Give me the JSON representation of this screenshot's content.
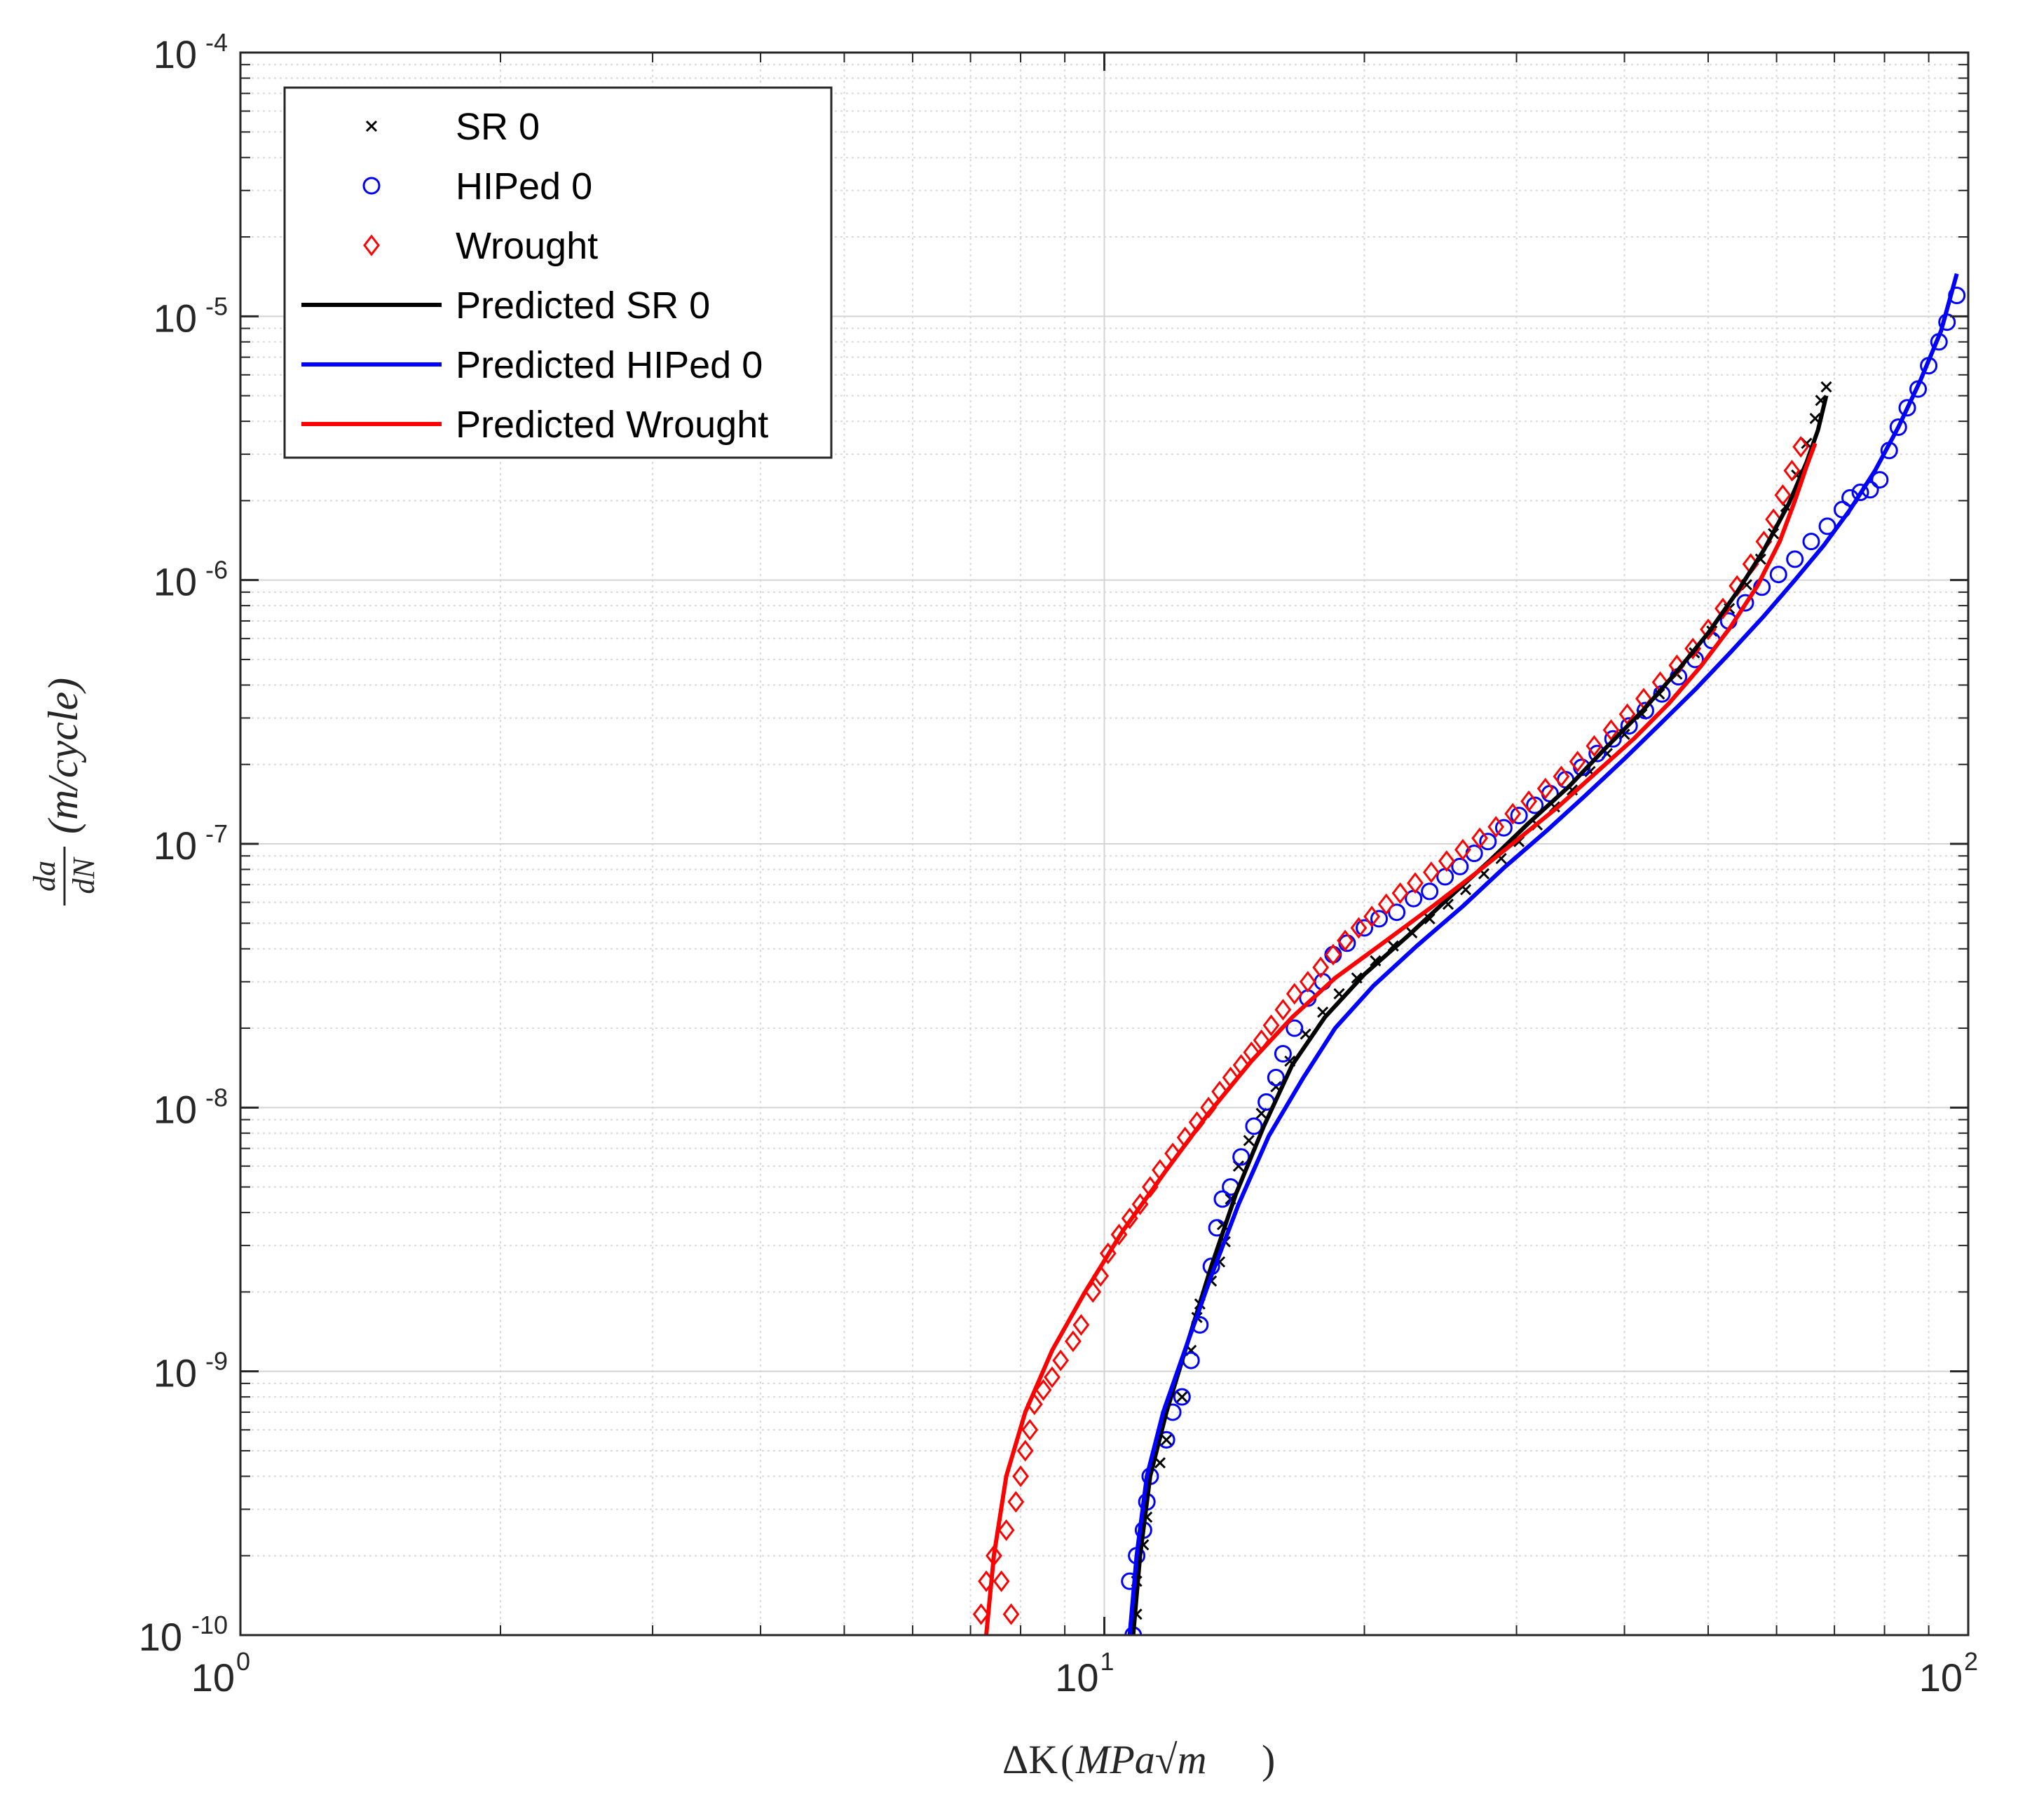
{
  "chart_data": {
    "type": "scatter",
    "xscale": "log",
    "yscale": "log",
    "xlim": [
      1,
      100
    ],
    "ylim": [
      1e-10,
      0.0001
    ],
    "grid": true,
    "minor_grid": true,
    "legend_position": "top-left",
    "x_ticks": [
      {
        "base": "10",
        "exp": "0",
        "value": 1
      },
      {
        "base": "10",
        "exp": "1",
        "value": 10
      },
      {
        "base": "10",
        "exp": "2",
        "value": 100
      }
    ],
    "y_ticks": [
      {
        "base": "10",
        "exp": "-10",
        "value": 1e-10
      },
      {
        "base": "10",
        "exp": "-9",
        "value": 1e-09
      },
      {
        "base": "10",
        "exp": "-8",
        "value": 1e-08
      },
      {
        "base": "10",
        "exp": "-7",
        "value": 1e-07
      },
      {
        "base": "10",
        "exp": "-6",
        "value": 1e-06
      },
      {
        "base": "10",
        "exp": "-5",
        "value": 1e-05
      },
      {
        "base": "10",
        "exp": "-4",
        "value": 0.0001
      }
    ],
    "xlabel": {
      "delta": "ΔK",
      "units": "MPa√m"
    },
    "ylabel": {
      "fraction_top": "da",
      "fraction_bottom": "dN",
      "units": "(m/cycle)"
    },
    "series": [
      {
        "name": "SR 0",
        "kind": "marker",
        "marker": "x",
        "color": "#000000",
        "points": [
          [
            10.9,
            1.2e-10
          ],
          [
            10.9,
            1.6e-10
          ],
          [
            11.1,
            2.2e-10
          ],
          [
            11.2,
            2.8e-10
          ],
          [
            11.6,
            4.5e-10
          ],
          [
            11.8,
            5.5e-10
          ],
          [
            12.3,
            8e-10
          ],
          [
            12.6,
            1.2e-09
          ],
          [
            12.8,
            1.6e-09
          ],
          [
            12.9,
            1.8e-09
          ],
          [
            13.3,
            2.2e-09
          ],
          [
            13.6,
            2.6e-09
          ],
          [
            13.8,
            3.1e-09
          ],
          [
            13.7,
            3.6e-09
          ],
          [
            14,
            4.5e-09
          ],
          [
            14.3,
            6e-09
          ],
          [
            14.7,
            7.5e-09
          ],
          [
            15.2,
            9.5e-09
          ],
          [
            15.8,
            1.2e-08
          ],
          [
            16.4,
            1.5e-08
          ],
          [
            17.1,
            1.9e-08
          ],
          [
            17.9,
            2.3e-08
          ],
          [
            18.7,
            2.7e-08
          ],
          [
            19.6,
            3.1e-08
          ],
          [
            20.6,
            3.6e-08
          ],
          [
            21.6,
            4.1e-08
          ],
          [
            22.7,
            4.6e-08
          ],
          [
            23.8,
            5.2e-08
          ],
          [
            25,
            5.9e-08
          ],
          [
            26.2,
            6.7e-08
          ],
          [
            27.5,
            7.7e-08
          ],
          [
            28.8,
            8.8e-08
          ],
          [
            30.2,
            1.02e-07
          ],
          [
            31.7,
            1.18e-07
          ],
          [
            33.2,
            1.38e-07
          ],
          [
            34.8,
            1.6e-07
          ],
          [
            36.5,
            1.88e-07
          ],
          [
            38.2,
            2.2e-07
          ],
          [
            40,
            2.6e-07
          ],
          [
            41.9,
            3.1e-07
          ],
          [
            43.9,
            3.7e-07
          ],
          [
            46,
            4.4e-07
          ],
          [
            48.2,
            5.3e-07
          ],
          [
            50.5,
            6.4e-07
          ],
          [
            52.9,
            7.8e-07
          ],
          [
            55.4,
            9.6e-07
          ],
          [
            57.5,
            1.2e-06
          ],
          [
            59.5,
            1.5e-06
          ],
          [
            61.5,
            1.9e-06
          ],
          [
            63.3,
            2.5e-06
          ],
          [
            65,
            3.3e-06
          ],
          [
            66.5,
            4.1e-06
          ],
          [
            67.5,
            4.8e-06
          ],
          [
            68.5,
            5.4e-06
          ]
        ]
      },
      {
        "name": "HIPed 0",
        "kind": "marker",
        "marker": "o",
        "color": "#0000ff",
        "points": [
          [
            10.8,
            1e-10
          ],
          [
            10.7,
            1.6e-10
          ],
          [
            10.9,
            2e-10
          ],
          [
            11.1,
            2.5e-10
          ],
          [
            11.2,
            3.2e-10
          ],
          [
            11.3,
            4e-10
          ],
          [
            11.8,
            5.5e-10
          ],
          [
            12,
            7e-10
          ],
          [
            12.3,
            8e-10
          ],
          [
            12.6,
            1.1e-09
          ],
          [
            12.9,
            1.5e-09
          ],
          [
            13.3,
            2.5e-09
          ],
          [
            13.5,
            3.5e-09
          ],
          [
            13.7,
            4.5e-09
          ],
          [
            14,
            5e-09
          ],
          [
            14.4,
            6.5e-09
          ],
          [
            14.9,
            8.5e-09
          ],
          [
            15.4,
            1.05e-08
          ],
          [
            15.8,
            1.3e-08
          ],
          [
            16.1,
            1.6e-08
          ],
          [
            16.6,
            2e-08
          ],
          [
            17.2,
            2.6e-08
          ],
          [
            17.9,
            3e-08
          ],
          [
            18.4,
            3.8e-08
          ],
          [
            19.1,
            4.2e-08
          ],
          [
            20,
            4.8e-08
          ],
          [
            20.8,
            5.2e-08
          ],
          [
            21.8,
            5.5e-08
          ],
          [
            22.8,
            6.2e-08
          ],
          [
            23.8,
            6.6e-08
          ],
          [
            24.8,
            7.5e-08
          ],
          [
            25.8,
            8.2e-08
          ],
          [
            26.8,
            9.2e-08
          ],
          [
            27.8,
            1.02e-07
          ],
          [
            29,
            1.15e-07
          ],
          [
            30.2,
            1.28e-07
          ],
          [
            31.5,
            1.4e-07
          ],
          [
            32.8,
            1.55e-07
          ],
          [
            34.2,
            1.75e-07
          ],
          [
            35.7,
            1.95e-07
          ],
          [
            37.2,
            2.2e-07
          ],
          [
            38.8,
            2.5e-07
          ],
          [
            40.5,
            2.8e-07
          ],
          [
            42.3,
            3.2e-07
          ],
          [
            44.2,
            3.7e-07
          ],
          [
            46.2,
            4.3e-07
          ],
          [
            48.3,
            5e-07
          ],
          [
            50.5,
            5.9e-07
          ],
          [
            52.8,
            7e-07
          ],
          [
            55.2,
            8.2e-07
          ],
          [
            57.7,
            9.4e-07
          ],
          [
            60.3,
            1.05e-06
          ],
          [
            63,
            1.2e-06
          ],
          [
            65.8,
            1.4e-06
          ],
          [
            68.7,
            1.6e-06
          ],
          [
            71.5,
            1.85e-06
          ],
          [
            73,
            2.05e-06
          ],
          [
            75,
            2.15e-06
          ],
          [
            77,
            2.2e-06
          ],
          [
            79,
            2.4e-06
          ],
          [
            81,
            3.1e-06
          ],
          [
            83,
            3.8e-06
          ],
          [
            85,
            4.5e-06
          ],
          [
            87.5,
            5.3e-06
          ],
          [
            90,
            6.5e-06
          ],
          [
            92.5,
            8e-06
          ],
          [
            94.5,
            9.5e-06
          ],
          [
            97,
            1.2e-05
          ]
        ]
      },
      {
        "name": "Wrought",
        "kind": "marker",
        "marker": "diamond",
        "color": "#ff0000",
        "points": [
          [
            7.2,
            1.2e-10
          ],
          [
            7.3,
            1.6e-10
          ],
          [
            7.45,
            2e-10
          ],
          [
            7.6,
            1.6e-10
          ],
          [
            7.8,
            1.2e-10
          ],
          [
            7.7,
            2.5e-10
          ],
          [
            7.9,
            3.2e-10
          ],
          [
            8,
            4e-10
          ],
          [
            8.1,
            5e-10
          ],
          [
            8.2,
            6e-10
          ],
          [
            8.3,
            7.5e-10
          ],
          [
            8.5,
            8.5e-10
          ],
          [
            8.7,
            9.5e-10
          ],
          [
            8.9,
            1.1e-09
          ],
          [
            9.2,
            1.3e-09
          ],
          [
            9.4,
            1.5e-09
          ],
          [
            9.7,
            2e-09
          ],
          [
            9.9,
            2.3e-09
          ],
          [
            10.1,
            2.8e-09
          ],
          [
            10.4,
            3.3e-09
          ],
          [
            10.7,
            3.8e-09
          ],
          [
            11,
            4.3e-09
          ],
          [
            11.3,
            5e-09
          ],
          [
            11.6,
            5.8e-09
          ],
          [
            12,
            6.7e-09
          ],
          [
            12.4,
            7.7e-09
          ],
          [
            12.8,
            8.8e-09
          ],
          [
            13.2,
            1e-08
          ],
          [
            13.6,
            1.15e-08
          ],
          [
            14,
            1.3e-08
          ],
          [
            14.4,
            1.45e-08
          ],
          [
            14.8,
            1.62e-08
          ],
          [
            15.2,
            1.8e-08
          ],
          [
            15.6,
            2.05e-08
          ],
          [
            16.1,
            2.35e-08
          ],
          [
            16.6,
            2.7e-08
          ],
          [
            17.2,
            3e-08
          ],
          [
            17.8,
            3.4e-08
          ],
          [
            18.4,
            3.8e-08
          ],
          [
            19,
            4.3e-08
          ],
          [
            19.7,
            4.8e-08
          ],
          [
            20.4,
            5.3e-08
          ],
          [
            21.2,
            5.9e-08
          ],
          [
            22,
            6.5e-08
          ],
          [
            22.9,
            7.1e-08
          ],
          [
            23.9,
            7.8e-08
          ],
          [
            24.9,
            8.6e-08
          ],
          [
            26,
            9.5e-08
          ],
          [
            27.2,
            1.05e-07
          ],
          [
            28.4,
            1.16e-07
          ],
          [
            29.7,
            1.3e-07
          ],
          [
            31,
            1.45e-07
          ],
          [
            32.4,
            1.62e-07
          ],
          [
            33.8,
            1.8e-07
          ],
          [
            35.3,
            2.05e-07
          ],
          [
            36.9,
            2.35e-07
          ],
          [
            38.6,
            2.7e-07
          ],
          [
            40.3,
            3.1e-07
          ],
          [
            42.1,
            3.55e-07
          ],
          [
            44,
            4.1e-07
          ],
          [
            46,
            4.75e-07
          ],
          [
            48,
            5.5e-07
          ],
          [
            50,
            6.5e-07
          ],
          [
            52,
            7.8e-07
          ],
          [
            54,
            9.5e-07
          ],
          [
            56,
            1.15e-06
          ],
          [
            58,
            1.4e-06
          ],
          [
            59.5,
            1.7e-06
          ],
          [
            61,
            2.1e-06
          ],
          [
            62.5,
            2.6e-06
          ],
          [
            64,
            3.2e-06
          ]
        ]
      },
      {
        "name": "Predicted SR 0",
        "kind": "line",
        "color": "#000000",
        "points": [
          [
            10.8,
            1e-10
          ],
          [
            11.0,
            2e-10
          ],
          [
            11.3,
            4e-10
          ],
          [
            11.8,
            7e-10
          ],
          [
            12.5,
            1.3e-09
          ],
          [
            13.3,
            2.5e-09
          ],
          [
            14.2,
            4.7e-09
          ],
          [
            15.3,
            8.5e-09
          ],
          [
            16.5,
            1.45e-08
          ],
          [
            18,
            2.2e-08
          ],
          [
            20,
            3.2e-08
          ],
          [
            22.5,
            4.5e-08
          ],
          [
            25,
            6.2e-08
          ],
          [
            28,
            8.7e-08
          ],
          [
            31,
            1.2e-07
          ],
          [
            34.5,
            1.65e-07
          ],
          [
            38,
            2.3e-07
          ],
          [
            42,
            3.2e-07
          ],
          [
            46,
            4.5e-07
          ],
          [
            50,
            6.3e-07
          ],
          [
            54,
            9e-07
          ],
          [
            58,
            1.3e-06
          ],
          [
            62,
            1.95e-06
          ],
          [
            65,
            2.8e-06
          ],
          [
            67,
            3.7e-06
          ],
          [
            68.5,
            5e-06
          ]
        ]
      },
      {
        "name": "Predicted HIPed 0",
        "kind": "line",
        "color": "#0000ff",
        "points": [
          [
            10.7,
            1e-10
          ],
          [
            10.9,
            2e-10
          ],
          [
            11.2,
            4e-10
          ],
          [
            11.7,
            7e-10
          ],
          [
            12.5,
            1.3e-09
          ],
          [
            13.3,
            2.3e-09
          ],
          [
            14.3,
            4.3e-09
          ],
          [
            15.5,
            7.8e-09
          ],
          [
            17,
            1.3e-08
          ],
          [
            18.5,
            2e-08
          ],
          [
            20.5,
            2.9e-08
          ],
          [
            23,
            4.1e-08
          ],
          [
            26,
            5.8e-08
          ],
          [
            29,
            8.1e-08
          ],
          [
            32.5,
            1.12e-07
          ],
          [
            36,
            1.52e-07
          ],
          [
            40,
            2.1e-07
          ],
          [
            44,
            2.85e-07
          ],
          [
            48.5,
            3.9e-07
          ],
          [
            53,
            5.3e-07
          ],
          [
            58,
            7.3e-07
          ],
          [
            63,
            1e-06
          ],
          [
            68,
            1.35e-06
          ],
          [
            73,
            1.85e-06
          ],
          [
            78,
            2.6e-06
          ],
          [
            83,
            3.8e-06
          ],
          [
            88,
            5.7e-06
          ],
          [
            93,
            8.8e-06
          ],
          [
            97,
            1.45e-05
          ]
        ]
      },
      {
        "name": "Predicted Wrought",
        "kind": "line",
        "color": "#ff0000",
        "points": [
          [
            7.3,
            1e-10
          ],
          [
            7.45,
            2e-10
          ],
          [
            7.7,
            4e-10
          ],
          [
            8.1,
            7e-10
          ],
          [
            8.7,
            1.2e-09
          ],
          [
            9.5,
            2e-09
          ],
          [
            10.5,
            3.4e-09
          ],
          [
            11.8,
            5.8e-09
          ],
          [
            13.2,
            9.5e-09
          ],
          [
            14.8,
            1.5e-08
          ],
          [
            16.5,
            2.2e-08
          ],
          [
            18.5,
            3.1e-08
          ],
          [
            21,
            4.2e-08
          ],
          [
            24,
            5.8e-08
          ],
          [
            27,
            7.8e-08
          ],
          [
            30,
            1.03e-07
          ],
          [
            33.5,
            1.38e-07
          ],
          [
            37,
            1.85e-07
          ],
          [
            41,
            2.5e-07
          ],
          [
            45,
            3.4e-07
          ],
          [
            49,
            4.7e-07
          ],
          [
            53,
            6.6e-07
          ],
          [
            57,
            9.5e-07
          ],
          [
            60.5,
            1.4e-06
          ],
          [
            63,
            2e-06
          ],
          [
            65,
            2.7e-06
          ],
          [
            66.5,
            3.3e-06
          ]
        ]
      }
    ]
  }
}
